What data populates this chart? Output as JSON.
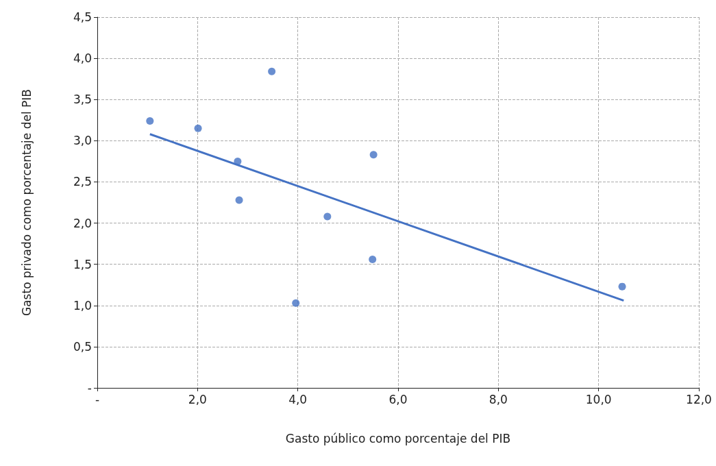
{
  "chart_data": {
    "type": "scatter",
    "xlabel": "Gasto público como porcentaje del PIB",
    "ylabel": "Gasto privado como porcentaje del PIB",
    "series": [
      {
        "marker": "circle",
        "color": "#4472c4",
        "x": [
          1.05,
          2.01,
          2.8,
          2.83,
          3.48,
          3.96,
          4.59,
          5.51,
          5.49,
          10.47
        ],
        "values": [
          3.24,
          3.15,
          2.75,
          2.28,
          3.84,
          1.03,
          2.08,
          2.83,
          1.56,
          1.23
        ]
      },
      {
        "type": "line",
        "marker": "none",
        "color": "#4472c4",
        "x": [
          1.05,
          10.5
        ],
        "values": [
          3.08,
          1.06
        ]
      }
    ],
    "xlim": [
      0,
      12
    ],
    "xticks": [
      {
        "value": 0,
        "label": "-"
      },
      {
        "value": 2,
        "label": "2,0"
      },
      {
        "value": 4,
        "label": "4,0"
      },
      {
        "value": 6,
        "label": "6,0"
      },
      {
        "value": 8,
        "label": "8,0"
      },
      {
        "value": 10,
        "label": "10,0"
      },
      {
        "value": 12,
        "label": "12,0"
      }
    ],
    "ylim": [
      0,
      4.5
    ],
    "yticks": [
      {
        "value": 0,
        "label": "-"
      },
      {
        "value": 0.5,
        "label": "0,5"
      },
      {
        "value": 1,
        "label": "1,0"
      },
      {
        "value": 1.5,
        "label": "1,5"
      },
      {
        "value": 2,
        "label": "2,0"
      },
      {
        "value": 2.5,
        "label": "2,5"
      },
      {
        "value": 3,
        "label": "3,0"
      },
      {
        "value": 3.5,
        "label": "3,5"
      },
      {
        "value": 4,
        "label": "4,0"
      },
      {
        "value": 4.5,
        "label": "4,5"
      }
    ],
    "grid": true,
    "line_style": "solid"
  }
}
